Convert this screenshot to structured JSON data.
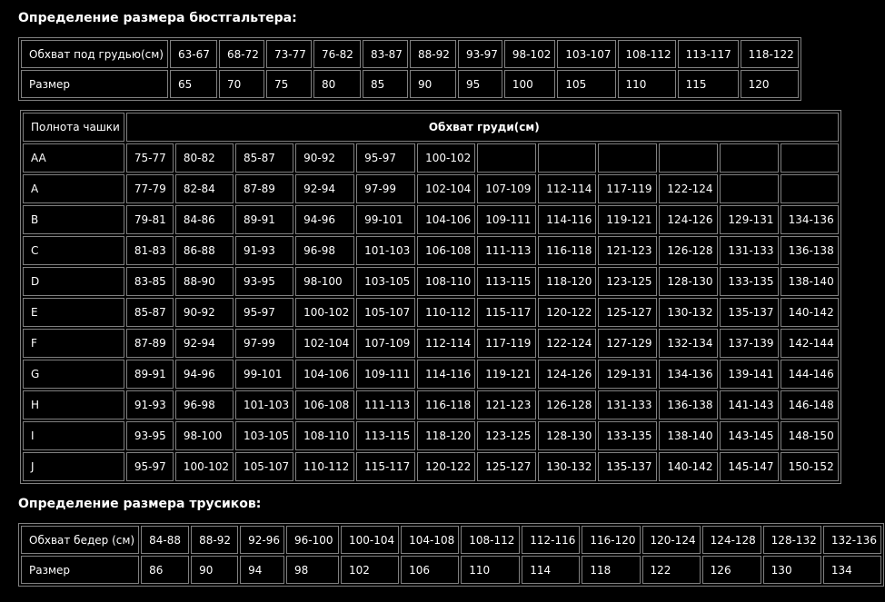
{
  "colors": {
    "background": "#000000",
    "text": "#ffffff",
    "table_border": "#808080"
  },
  "bra_section": {
    "title": "Определение размера бюстгальтера:",
    "underbust_table": {
      "row_labels": [
        "Обхват под грудью(см)",
        "Размер"
      ],
      "underbust_ranges": [
        "63-67",
        "68-72",
        "73-77",
        "76-82",
        "83-87",
        "88-92",
        "93-97",
        "98-102",
        "103-107",
        "108-112",
        "113-117",
        "118-122"
      ],
      "sizes": [
        "65",
        "70",
        "75",
        "80",
        "85",
        "90",
        "95",
        "100",
        "105",
        "110",
        "115",
        "120"
      ]
    },
    "cup_table": {
      "corner_header": "Полнота чашки",
      "span_header": "Обхват груди(см)",
      "rows": [
        {
          "cup": "AA",
          "bust_ranges": [
            "75-77",
            "80-82",
            "85-87",
            "90-92",
            "95-97",
            "100-102",
            "",
            "",
            "",
            "",
            "",
            ""
          ]
        },
        {
          "cup": "A",
          "bust_ranges": [
            "77-79",
            "82-84",
            "87-89",
            "92-94",
            "97-99",
            "102-104",
            "107-109",
            "112-114",
            "117-119",
            "122-124",
            "",
            ""
          ]
        },
        {
          "cup": "B",
          "bust_ranges": [
            "79-81",
            "84-86",
            "89-91",
            "94-96",
            "99-101",
            "104-106",
            "109-111",
            "114-116",
            "119-121",
            "124-126",
            "129-131",
            "134-136"
          ]
        },
        {
          "cup": "C",
          "bust_ranges": [
            "81-83",
            "86-88",
            "91-93",
            "96-98",
            "101-103",
            "106-108",
            "111-113",
            "116-118",
            "121-123",
            "126-128",
            "131-133",
            "136-138"
          ]
        },
        {
          "cup": "D",
          "bust_ranges": [
            "83-85",
            "88-90",
            "93-95",
            "98-100",
            "103-105",
            "108-110",
            "113-115",
            "118-120",
            "123-125",
            "128-130",
            "133-135",
            "138-140"
          ]
        },
        {
          "cup": "E",
          "bust_ranges": [
            "85-87",
            "90-92",
            "95-97",
            "100-102",
            "105-107",
            "110-112",
            "115-117",
            "120-122",
            "125-127",
            "130-132",
            "135-137",
            "140-142"
          ]
        },
        {
          "cup": "F",
          "bust_ranges": [
            "87-89",
            "92-94",
            "97-99",
            "102-104",
            "107-109",
            "112-114",
            "117-119",
            "122-124",
            "127-129",
            "132-134",
            "137-139",
            "142-144"
          ]
        },
        {
          "cup": "G",
          "bust_ranges": [
            "89-91",
            "94-96",
            "99-101",
            "104-106",
            "109-111",
            "114-116",
            "119-121",
            "124-126",
            "129-131",
            "134-136",
            "139-141",
            "144-146"
          ]
        },
        {
          "cup": "H",
          "bust_ranges": [
            "91-93",
            "96-98",
            "101-103",
            "106-108",
            "111-113",
            "116-118",
            "121-123",
            "126-128",
            "131-133",
            "136-138",
            "141-143",
            "146-148"
          ]
        },
        {
          "cup": "I",
          "bust_ranges": [
            "93-95",
            "98-100",
            "103-105",
            "108-110",
            "113-115",
            "118-120",
            "123-125",
            "128-130",
            "133-135",
            "138-140",
            "143-145",
            "148-150"
          ]
        },
        {
          "cup": "J",
          "bust_ranges": [
            "95-97",
            "100-102",
            "105-107",
            "110-112",
            "115-117",
            "120-122",
            "125-127",
            "130-132",
            "135-137",
            "140-142",
            "145-147",
            "150-152"
          ]
        }
      ]
    }
  },
  "panties_section": {
    "title": "Определение размера трусиков:",
    "hip_table": {
      "row_labels": [
        "Обхват бедер (см)",
        "Размер"
      ],
      "hip_ranges": [
        "84-88",
        "88-92",
        "92-96",
        "96-100",
        "100-104",
        "104-108",
        "108-112",
        "112-116",
        "116-120",
        "120-124",
        "124-128",
        "128-132",
        "132-136"
      ],
      "sizes": [
        "86",
        "90",
        "94",
        "98",
        "102",
        "106",
        "110",
        "114",
        "118",
        "122",
        "126",
        "130",
        "134"
      ]
    }
  }
}
